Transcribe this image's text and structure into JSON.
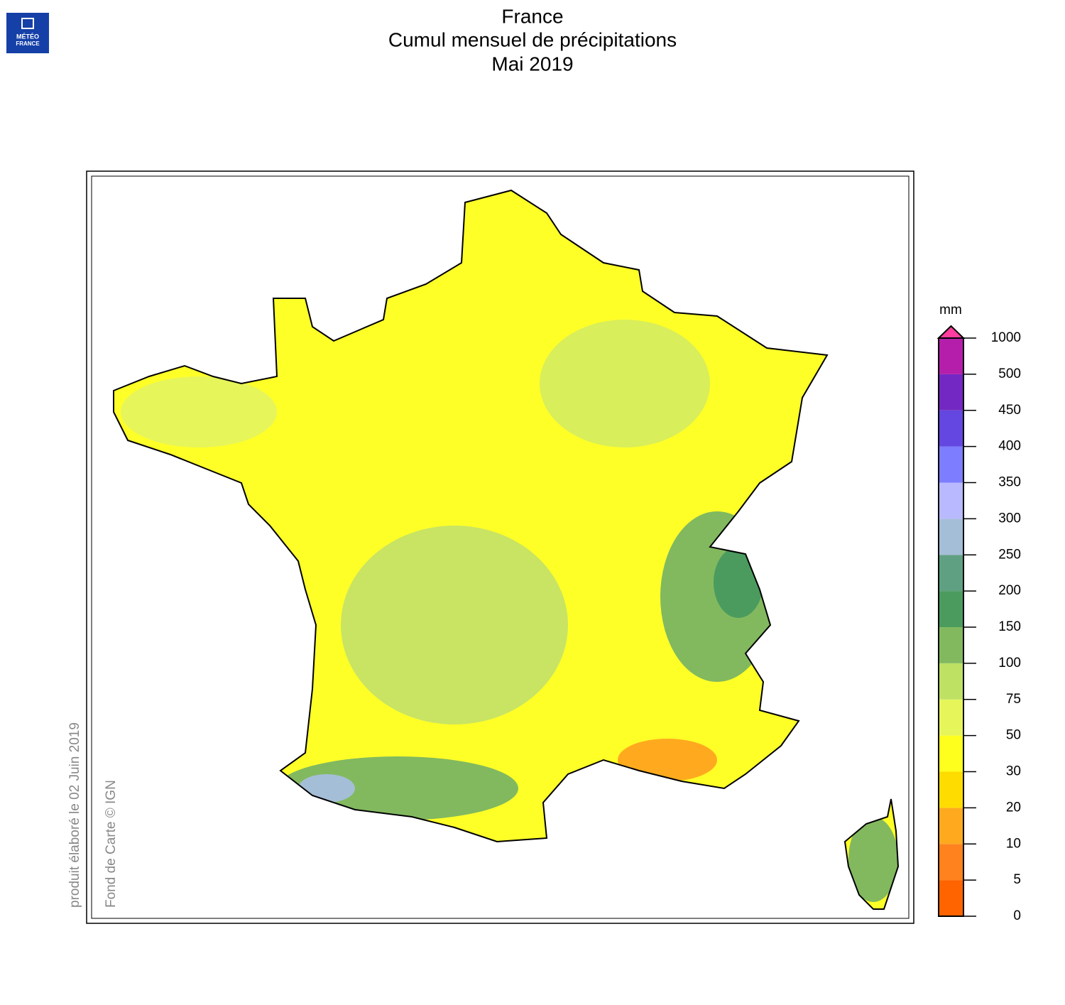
{
  "logo": {
    "line1": "MÉTÉO",
    "line2": "FRANCE"
  },
  "header": {
    "title": [
      "France",
      "Cumul mensuel de précipitations",
      "Mai 2019"
    ]
  },
  "credits": {
    "produced": "produit élaboré le 02 Juin 2019",
    "basemap": "Fond de Carte © IGN"
  },
  "legend": {
    "unit": "mm",
    "ticks": [
      0,
      5,
      10,
      20,
      30,
      50,
      75,
      100,
      150,
      200,
      250,
      300,
      350,
      400,
      450,
      500,
      1000
    ],
    "colors": [
      "#ff6400",
      "#ff821e",
      "#ffaa1e",
      "#ffdc00",
      "#ffff1e",
      "#e6f55a",
      "#bee164",
      "#82b95f",
      "#4b9b5f",
      "#5fa082",
      "#a5bed7",
      "#b9b9ff",
      "#7d7dff",
      "#6446e1",
      "#7328c3",
      "#b41eaa"
    ],
    "over_color": "#ff3ca0"
  }
}
